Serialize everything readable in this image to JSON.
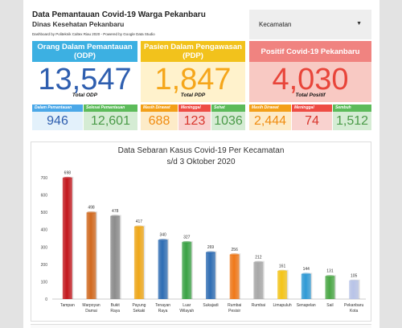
{
  "header": {
    "title": "Data Pemantauan Covid-19 Warga Pekanbaru",
    "subtitle": "Dinas Kesehatan Pekanbaru",
    "credit": "Dashboard by Politeknik Caltex Riau 2020 - Powered by Google Data Studio"
  },
  "filter": {
    "selected": "Kecamatan",
    "icon": "caret-down-icon"
  },
  "colors": {
    "odp_head": "#3cb0e2",
    "odp_value": "#2e5eaf",
    "pdp_head": "#f2c21c",
    "pdp_value": "#f5a61a",
    "pos_head": "#f08380",
    "pos_value": "#e8453a",
    "blue_sub": "#4ba8e8",
    "green_sub": "#5cbb5a",
    "orange_sub": "#f3a019",
    "red_sub": "#ee4c44"
  },
  "odp": {
    "title": "Orang Dalam Pemantauan (ODP)",
    "value": "13,547",
    "total_label": "Total ODP",
    "sub": [
      {
        "label": "Dalam Pemantauan",
        "value": "946"
      },
      {
        "label": "Selesai Pemantauan",
        "value": "12,601"
      }
    ]
  },
  "pdp": {
    "title": "Pasien Dalam Pengawasan (PDP)",
    "value": "1,847",
    "total_label": "Total PDP",
    "sub": [
      {
        "label": "Masih Dirawat",
        "value": "688"
      },
      {
        "label": "Meninggal",
        "value": "123"
      },
      {
        "label": "Sehat",
        "value": "1036"
      }
    ]
  },
  "positif": {
    "title": "Positif Covid-19 Pekanbaru",
    "value": "4,030",
    "total_label": "Total Positif",
    "sub": [
      {
        "label": "Masih Dirawat",
        "value": "2,444"
      },
      {
        "label": "Meninggal",
        "value": "74"
      },
      {
        "label": "Sembuh",
        "value": "1,512"
      }
    ]
  },
  "chart_data": {
    "type": "bar",
    "title": "Data Sebaran Kasus Covid-19 Per Kecamatan",
    "subtitle": "s/d 3 Oktober 2020",
    "xlabel": "",
    "ylabel": "",
    "ylim": [
      0,
      700
    ],
    "yticks": [
      0,
      100,
      200,
      300,
      400,
      500,
      600,
      700
    ],
    "grid": false,
    "categories": [
      "Tampan",
      "Marpoyan Damai",
      "Bukit Raya",
      "Payung Sekaki",
      "Tenayan Raya",
      "Luar Wilayah",
      "Sukajadi",
      "Rumbai Pesisir",
      "Rumbai",
      "Limapuluh",
      "Senapelan",
      "Sail",
      "Pekanbaru Kota"
    ],
    "values": [
      698,
      498,
      478,
      417,
      340,
      327,
      269,
      256,
      212,
      161,
      144,
      131,
      105
    ],
    "colors": [
      "#c4161c",
      "#d2691e",
      "#8c8c8c",
      "#f0a818",
      "#2e6db4",
      "#3aa345",
      "#2e6db4",
      "#f07818",
      "#a8a8a8",
      "#f5c518",
      "#2e9ad6",
      "#4aa845",
      "#b8c4e8"
    ]
  }
}
